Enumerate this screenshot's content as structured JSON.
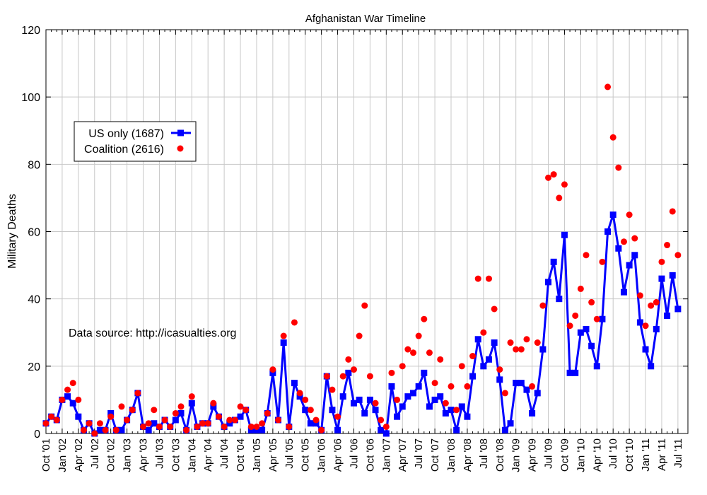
{
  "chart_data": {
    "type": "line",
    "title": "Afghanistan War Timeline",
    "xlabel": "",
    "ylabel": "Military Deaths",
    "ylim": [
      0,
      120
    ],
    "yticks": [
      0,
      20,
      40,
      60,
      80,
      100,
      120
    ],
    "grid": true,
    "legend_position": "upper-left",
    "annotation": "Data source: http://icasualties.org",
    "x_tick_labels": [
      "Oct '01",
      "Jan '02",
      "Apr '02",
      "Jul '02",
      "Oct '02",
      "Jan '03",
      "Apr '03",
      "Jul '03",
      "Oct '03",
      "Jan '04",
      "Apr '04",
      "Jul '04",
      "Oct '04",
      "Jan '05",
      "Apr '05",
      "Jul '05",
      "Oct '05",
      "Jan '06",
      "Apr '06",
      "Jul '06",
      "Oct '06",
      "Jan '07",
      "Apr '07",
      "Jul '07",
      "Oct '07",
      "Jan '08",
      "Apr '08",
      "Jul '08",
      "Oct '08",
      "Jan '09",
      "Apr '09",
      "Jul '09",
      "Oct '09",
      "Jan '10",
      "Apr '10",
      "Jul '10",
      "Oct '10",
      "Jan '11",
      "Apr '11",
      "Jul '11"
    ],
    "x_start": "2001-10",
    "x_step": "month",
    "series": [
      {
        "name": "US only (1687)",
        "color": "#0000ff",
        "style": "line-square",
        "values": [
          3,
          5,
          4,
          10,
          11,
          9,
          5,
          1,
          3,
          0,
          1,
          1,
          6,
          1,
          1,
          4,
          7,
          12,
          2,
          1,
          3,
          2,
          4,
          2,
          4,
          6,
          1,
          9,
          2,
          3,
          3,
          8,
          5,
          2,
          3,
          4,
          5,
          7,
          1,
          1,
          1,
          6,
          18,
          4,
          27,
          2,
          15,
          11,
          7,
          3,
          3,
          1,
          17,
          7,
          1,
          11,
          18,
          9,
          10,
          6,
          10,
          7,
          1,
          0,
          14,
          5,
          8,
          11,
          12,
          14,
          18,
          8,
          10,
          11,
          6,
          7,
          1,
          8,
          5,
          17,
          28,
          20,
          22,
          27,
          16,
          1,
          3,
          15,
          15,
          13,
          6,
          12,
          25,
          45,
          51,
          40,
          59,
          18,
          18,
          30,
          31,
          26,
          20,
          34,
          60,
          65,
          55,
          42,
          50,
          53,
          33,
          25,
          20,
          31,
          46,
          35,
          47,
          37
        ]
      },
      {
        "name": "Coalition (2616)",
        "color": "#ff0000",
        "style": "dots",
        "values": [
          3,
          5,
          4,
          10,
          13,
          15,
          10,
          1,
          3,
          0,
          3,
          1,
          5,
          1,
          8,
          4,
          7,
          12,
          2,
          3,
          7,
          2,
          4,
          2,
          6,
          8,
          1,
          11,
          2,
          3,
          3,
          9,
          5,
          2,
          4,
          4,
          8,
          7,
          2,
          2,
          3,
          6,
          19,
          4,
          29,
          2,
          33,
          12,
          10,
          7,
          4,
          1,
          17,
          13,
          5,
          17,
          22,
          19,
          29,
          38,
          17,
          9,
          4,
          2,
          18,
          10,
          20,
          25,
          24,
          29,
          34,
          24,
          15,
          22,
          9,
          14,
          7,
          20,
          14,
          23,
          46,
          30,
          46,
          37,
          19,
          12,
          27,
          25,
          25,
          28,
          14,
          27,
          38,
          76,
          77,
          70,
          74,
          32,
          35,
          43,
          53,
          39,
          34,
          51,
          103,
          88,
          79,
          57,
          65,
          58,
          41,
          32,
          38,
          39,
          51,
          56,
          66,
          53
        ]
      }
    ]
  }
}
